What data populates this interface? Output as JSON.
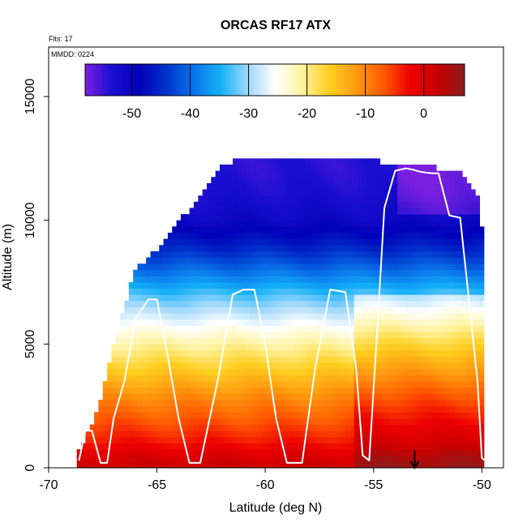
{
  "chart_data": {
    "type": "heatmap",
    "title": "ORCAS RF17 ATX",
    "annotations": {
      "flights": "Flts: 17",
      "date": "MMDD: 0224"
    },
    "xlabel": "Latitude (deg N)",
    "ylabel": "Altitude (m)",
    "xlim": [
      -70,
      -49
    ],
    "ylim": [
      0,
      17000
    ],
    "x_ticks": [
      -70,
      -65,
      -60,
      -55,
      -50
    ],
    "x_tick_labels": [
      "-70",
      "-65",
      "-60",
      "-55",
      "-50"
    ],
    "y_ticks": [
      0,
      5000,
      10000,
      15000
    ],
    "y_tick_labels": [
      "0",
      "5000",
      "10000",
      "15000"
    ],
    "colorbar": {
      "min": -58,
      "max": 7,
      "ticks": [
        -50,
        -40,
        -30,
        -20,
        -10,
        0
      ],
      "tick_labels": [
        "-50",
        "-40",
        "-30",
        "-20",
        "-10",
        "0"
      ],
      "colors": [
        "#7b1fe0",
        "#1a0fd0",
        "#0000b8",
        "#0033cc",
        "#0a74ea",
        "#13b0f8",
        "#9fd8fb",
        "#ffffff",
        "#fff3a0",
        "#ffcf20",
        "#ff9a10",
        "#ff5a00",
        "#ee0000",
        "#c80000",
        "#8b1c1c"
      ]
    },
    "coverage": {
      "lat": [
        -68.7,
        -68.0,
        -67.5,
        -67.0,
        -66.5,
        -66.0,
        -65.5,
        -65.0,
        -64.5,
        -64.0,
        -63.5,
        -63.0,
        -62.5,
        -62.0,
        -61.0,
        -60.0,
        -59.0,
        -58.0,
        -57.0,
        -56.0,
        -55.0,
        -54.0,
        -53.5,
        -53.0,
        -52.0,
        -51.0,
        -50.5,
        -50.2,
        -49.9
      ],
      "top": [
        400,
        1700,
        3000,
        4900,
        6400,
        7900,
        8300,
        8700,
        9300,
        9800,
        10300,
        10900,
        11500,
        12200,
        12300,
        12300,
        12300,
        12300,
        12300,
        12350,
        12300,
        12100,
        12100,
        12100,
        12000,
        11900,
        11400,
        10800,
        9000
      ]
    },
    "temperature_profile": {
      "alt": [
        0,
        500,
        1000,
        2000,
        3000,
        4000,
        5000,
        6000,
        7000,
        8000,
        9000,
        10000,
        11000,
        12000
      ],
      "temp": [
        2,
        0,
        -3,
        -7,
        -11,
        -16,
        -21,
        -27,
        -33,
        -40,
        -46,
        -51,
        -53,
        -54
      ]
    },
    "flight_track": {
      "lat": [
        -68.6,
        -68.3,
        -68.0,
        -67.6,
        -67.3,
        -67.0,
        -66.5,
        -66.0,
        -65.4,
        -65.0,
        -64.5,
        -64.0,
        -63.5,
        -63.0,
        -62.2,
        -61.5,
        -61.0,
        -60.5,
        -60.0,
        -59.5,
        -59.0,
        -58.3,
        -57.7,
        -57.0,
        -56.3,
        -55.8,
        -55.5,
        -55.2,
        -54.8,
        -54.5,
        -54.0,
        -53.5,
        -53.2,
        -52.8,
        -52.3,
        -52.0,
        -51.5,
        -51.0,
        -50.5,
        -50.2,
        -50.0,
        -49.8
      ],
      "alt": [
        300,
        1500,
        1500,
        200,
        200,
        2000,
        3500,
        6000,
        6800,
        6800,
        4500,
        2000,
        200,
        200,
        3500,
        7000,
        7200,
        7200,
        5000,
        2000,
        200,
        200,
        4000,
        7200,
        7100,
        4000,
        500,
        300,
        6000,
        10500,
        12000,
        12100,
        12050,
        11950,
        11900,
        11900,
        10200,
        10100,
        6000,
        3500,
        400,
        250
      ]
    },
    "marker": {
      "lat": -53.1
    }
  }
}
